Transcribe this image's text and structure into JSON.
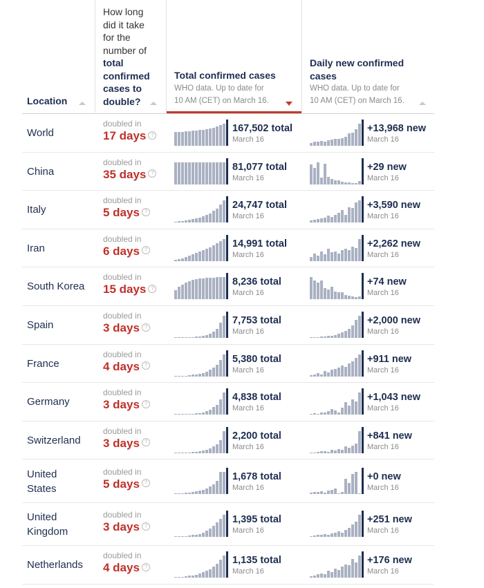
{
  "header": {
    "location": "Location",
    "doubling_lines": [
      "How long",
      "did it take",
      "for the",
      "number of"
    ],
    "doubling_bold_lines": [
      "total",
      "confirmed",
      "cases to",
      "double?"
    ],
    "total_title": "Total confirmed cases",
    "total_sub_1": "WHO data. Up to date for",
    "total_sub_2": "10 AM (CET) on March 16.",
    "daily_title_1": "Daily new confirmed",
    "daily_title_2": "cases",
    "daily_sub_1": "WHO data. Up to date for",
    "daily_sub_2": "10 AM (CET) on March 16.",
    "sort_column": "Total confirmed cases",
    "sort_direction": "descending"
  },
  "doubled_in_label": "doubled in",
  "help_icon": "question-circle-icon",
  "colors": {
    "accent_red": "#c0302a",
    "navy": "#1d2d50",
    "bar_gray": "#a9b1c2"
  },
  "rows": [
    {
      "loc1": "World",
      "loc2": "",
      "days": "17 days",
      "total": "167,502 total",
      "total_date": "March 16",
      "new": "+13,968 new",
      "new_date": "March 16",
      "total_spark": [
        0.62,
        0.63,
        0.64,
        0.65,
        0.66,
        0.68,
        0.7,
        0.71,
        0.73,
        0.75,
        0.78,
        0.82,
        0.87,
        0.93,
        1.0
      ],
      "new_spark": [
        0.12,
        0.18,
        0.2,
        0.22,
        0.18,
        0.25,
        0.28,
        0.3,
        0.32,
        0.35,
        0.4,
        0.55,
        0.6,
        0.75,
        1.0
      ]
    },
    {
      "loc1": "China",
      "loc2": "",
      "days": "35 days",
      "total": "81,077 total",
      "total_date": "March 16",
      "new": "+29 new",
      "new_date": "March 16",
      "total_spark": [
        1,
        1,
        1,
        1,
        1,
        1,
        1,
        1,
        1,
        1,
        1,
        1,
        1,
        1,
        1
      ],
      "new_spark": [
        0.9,
        0.75,
        1.0,
        0.3,
        0.95,
        0.35,
        0.25,
        0.2,
        0.18,
        0.12,
        0.1,
        0.08,
        0.06,
        0.05,
        0.15
      ]
    },
    {
      "loc1": "Italy",
      "loc2": "",
      "days": "5 days",
      "total": "24,747 total",
      "total_date": "March 16",
      "new": "+3,590 new",
      "new_date": "March 16",
      "total_spark": [
        0.03,
        0.05,
        0.07,
        0.09,
        0.12,
        0.15,
        0.19,
        0.23,
        0.28,
        0.35,
        0.42,
        0.52,
        0.63,
        0.8,
        1.0
      ],
      "new_spark": [
        0.08,
        0.12,
        0.15,
        0.18,
        0.22,
        0.3,
        0.25,
        0.35,
        0.45,
        0.55,
        0.35,
        0.7,
        0.65,
        0.9,
        1.0
      ]
    },
    {
      "loc1": "Iran",
      "loc2": "",
      "days": "6 days",
      "total": "14,991 total",
      "total_date": "March 16",
      "new": "+2,262 new",
      "new_date": "March 16",
      "total_spark": [
        0.06,
        0.1,
        0.14,
        0.2,
        0.25,
        0.31,
        0.37,
        0.43,
        0.5,
        0.57,
        0.64,
        0.72,
        0.8,
        0.9,
        1.0
      ],
      "new_spark": [
        0.2,
        0.35,
        0.25,
        0.45,
        0.3,
        0.55,
        0.4,
        0.45,
        0.35,
        0.5,
        0.55,
        0.5,
        0.65,
        0.6,
        1.0
      ]
    },
    {
      "loc1": "South Korea",
      "loc2": "",
      "days": "15 days",
      "total": "8,236 total",
      "total_date": "March 16",
      "new": "+74 new",
      "new_date": "March 16",
      "total_spark": [
        0.4,
        0.55,
        0.66,
        0.75,
        0.82,
        0.87,
        0.9,
        0.93,
        0.95,
        0.96,
        0.97,
        0.98,
        0.99,
        0.99,
        1.0
      ],
      "new_spark": [
        1.0,
        0.85,
        0.75,
        0.85,
        0.5,
        0.45,
        0.55,
        0.35,
        0.3,
        0.3,
        0.2,
        0.15,
        0.12,
        0.1,
        0.12
      ]
    },
    {
      "loc1": "Spain",
      "loc2": "",
      "days": "3 days",
      "total": "7,753 total",
      "total_date": "March 16",
      "new": "+2,000 new",
      "new_date": "March 16",
      "total_spark": [
        0.0,
        0.01,
        0.01,
        0.02,
        0.03,
        0.04,
        0.05,
        0.07,
        0.1,
        0.14,
        0.2,
        0.28,
        0.4,
        0.7,
        1.0
      ],
      "new_spark": [
        0.0,
        0.02,
        0.03,
        0.05,
        0.06,
        0.08,
        0.1,
        0.12,
        0.18,
        0.25,
        0.3,
        0.4,
        0.55,
        0.8,
        1.0
      ]
    },
    {
      "loc1": "France",
      "loc2": "",
      "days": "4 days",
      "total": "5,380 total",
      "total_date": "March 16",
      "new": "+911 new",
      "new_date": "March 16",
      "total_spark": [
        0.01,
        0.02,
        0.03,
        0.04,
        0.06,
        0.08,
        0.1,
        0.13,
        0.17,
        0.22,
        0.3,
        0.4,
        0.52,
        0.75,
        1.0
      ],
      "new_spark": [
        0.05,
        0.08,
        0.15,
        0.1,
        0.25,
        0.2,
        0.3,
        0.35,
        0.4,
        0.5,
        0.45,
        0.6,
        0.7,
        0.85,
        1.0
      ]
    },
    {
      "loc1": "Germany",
      "loc2": "",
      "days": "3 days",
      "total": "4,838 total",
      "total_date": "March 16",
      "new": "+1,043 new",
      "new_date": "March 16",
      "total_spark": [
        0.0,
        0.01,
        0.01,
        0.02,
        0.03,
        0.04,
        0.05,
        0.07,
        0.1,
        0.15,
        0.22,
        0.33,
        0.45,
        0.7,
        1.0
      ],
      "new_spark": [
        0.0,
        0.05,
        0.02,
        0.1,
        0.08,
        0.15,
        0.25,
        0.2,
        0.1,
        0.3,
        0.55,
        0.4,
        0.7,
        0.6,
        1.0
      ]
    },
    {
      "loc1": "Switzerland",
      "loc2": "",
      "days": "3 days",
      "total": "2,200 total",
      "total_date": "March 16",
      "new": "+841 new",
      "new_date": "March 16",
      "total_spark": [
        0.0,
        0.01,
        0.01,
        0.02,
        0.03,
        0.05,
        0.07,
        0.09,
        0.12,
        0.16,
        0.22,
        0.3,
        0.42,
        0.6,
        1.0
      ],
      "new_spark": [
        0.0,
        0.0,
        0.05,
        0.1,
        0.08,
        0.05,
        0.15,
        0.12,
        0.2,
        0.15,
        0.3,
        0.25,
        0.35,
        0.45,
        1.0
      ]
    },
    {
      "loc1": "United",
      "loc2": "States",
      "days": "5 days",
      "total": "1,678 total",
      "total_date": "March 16",
      "new": "+0 new",
      "new_date": "March 16",
      "total_spark": [
        0.02,
        0.03,
        0.04,
        0.05,
        0.07,
        0.09,
        0.12,
        0.15,
        0.2,
        0.25,
        0.33,
        0.45,
        0.6,
        1.0,
        1.0
      ],
      "new_spark": [
        0.05,
        0.1,
        0.08,
        0.12,
        0.05,
        0.15,
        0.2,
        0.25,
        0.0,
        0.1,
        0.7,
        0.5,
        0.9,
        1.0,
        0.0
      ]
    },
    {
      "loc1": "United",
      "loc2": "Kingdom",
      "days": "3 days",
      "total": "1,395 total",
      "total_date": "March 16",
      "new": "+251 new",
      "new_date": "March 16",
      "total_spark": [
        0.01,
        0.02,
        0.03,
        0.04,
        0.06,
        0.08,
        0.1,
        0.14,
        0.2,
        0.28,
        0.38,
        0.5,
        0.65,
        0.82,
        1.0
      ],
      "new_spark": [
        0.02,
        0.05,
        0.08,
        0.1,
        0.12,
        0.08,
        0.15,
        0.2,
        0.25,
        0.2,
        0.3,
        0.4,
        0.55,
        0.7,
        1.0
      ]
    },
    {
      "loc1": "Netherlands",
      "loc2": "",
      "days": "4 days",
      "total": "1,135 total",
      "total_date": "March 16",
      "new": "+176 new",
      "new_date": "March 16",
      "total_spark": [
        0.01,
        0.02,
        0.04,
        0.06,
        0.08,
        0.1,
        0.14,
        0.18,
        0.24,
        0.3,
        0.38,
        0.5,
        0.62,
        0.82,
        1.0
      ],
      "new_spark": [
        0.05,
        0.1,
        0.15,
        0.2,
        0.15,
        0.3,
        0.25,
        0.4,
        0.35,
        0.5,
        0.6,
        0.55,
        0.85,
        0.7,
        1.0
      ]
    }
  ]
}
